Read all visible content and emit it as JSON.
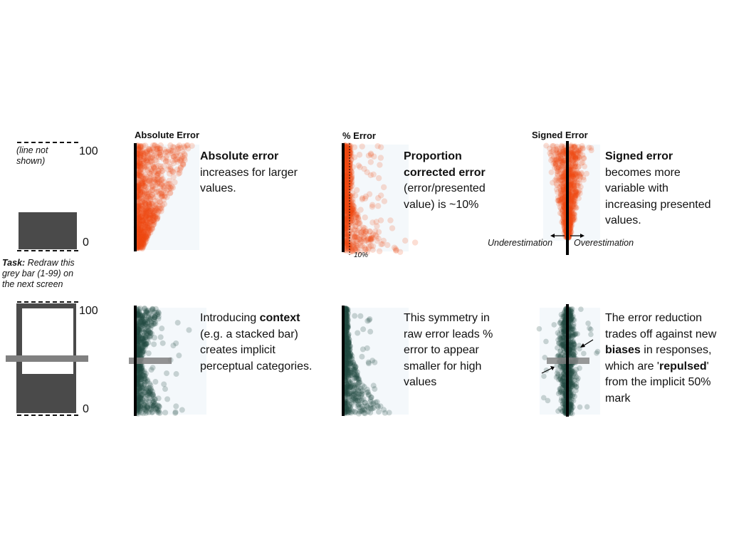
{
  "stimulus_top": {
    "note": "(line not shown)",
    "axis_max": "100",
    "axis_min": "0",
    "task_bold": "Task:",
    "task_rest": " Redraw this grey bar (1-99) on the next screen"
  },
  "stimulus_bottom": {
    "axis_max": "100",
    "axis_min": "0"
  },
  "panels_top": [
    {
      "title": "Absolute Error",
      "desc": [
        {
          "text": "Absolute error",
          "bold": true
        },
        {
          "text": " increases for larger values.",
          "bold": false
        }
      ]
    },
    {
      "title": "% Error",
      "marker_label": "10%",
      "desc": [
        {
          "text": "Proportion corrected error",
          "bold": true
        },
        {
          "text": " (error/presented value) is ~10%",
          "bold": false
        }
      ]
    },
    {
      "title": "Signed Error",
      "left_label": "Underestimation",
      "right_label": "Overestimation",
      "desc": [
        {
          "text": "Signed error",
          "bold": true
        },
        {
          "text": " becomes more variable with increasing presented values.",
          "bold": false
        }
      ]
    }
  ],
  "panels_bottom": [
    {
      "desc": [
        {
          "text": "Introducing ",
          "bold": false
        },
        {
          "text": "context",
          "bold": true
        },
        {
          "text": " (e.g. a stacked bar) creates implicit perceptual categories.",
          "bold": false
        }
      ]
    },
    {
      "desc": [
        {
          "text": "This symmetry in raw error leads % error to appear smaller for high values",
          "bold": false
        }
      ]
    },
    {
      "desc": [
        {
          "text": "The error reduction trades off against new ",
          "bold": false
        },
        {
          "text": "biases",
          "bold": true
        },
        {
          "text": " in responses, which are '",
          "bold": false
        },
        {
          "text": "repulsed",
          "bold": true
        },
        {
          "text": "' from the implicit 50% mark",
          "bold": false
        }
      ]
    }
  ],
  "colors": {
    "top_points": "#ee4a12",
    "bottom_points": "#1f4a40",
    "stimulus_bar": "#4a4a4a",
    "panel_bg": "#f4f8fb",
    "context_bar": "#808080"
  }
}
